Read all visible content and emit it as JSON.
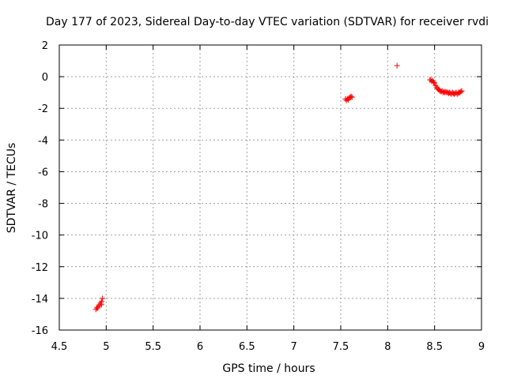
{
  "chart_data": {
    "type": "scatter",
    "title": "Day 177 of 2023, Sidereal Day-to-day VTEC variation (SDTVAR) for receiver rvdi",
    "xlabel": "GPS time / hours",
    "ylabel": "SDTVAR / TECUs",
    "xlim": [
      4.5,
      9
    ],
    "ylim": [
      -16,
      2
    ],
    "xticks": [
      4.5,
      5,
      5.5,
      6,
      6.5,
      7,
      7.5,
      8,
      8.5,
      9
    ],
    "xtick_labels": [
      "4.5",
      "5",
      "5.5",
      "6",
      "6.5",
      "7",
      "7.5",
      "8",
      "8.5",
      "9"
    ],
    "yticks": [
      -16,
      -14,
      -12,
      -10,
      -8,
      -6,
      -4,
      -2,
      0,
      2
    ],
    "ytick_labels": [
      "-16",
      "-14",
      "-12",
      "-10",
      "-8",
      "-6",
      "-4",
      "-2",
      "0",
      "2"
    ],
    "grid": true,
    "marker": "+",
    "color": "#ff0000",
    "series": [
      {
        "name": "SDTVAR",
        "x": [
          4.89,
          4.9,
          4.91,
          4.92,
          4.93,
          4.94,
          4.95,
          4.95,
          4.96,
          7.55,
          7.56,
          7.57,
          7.58,
          7.59,
          7.6,
          7.61,
          7.62,
          8.1,
          8.45,
          8.46,
          8.47,
          8.48,
          8.49,
          8.5,
          8.51,
          8.52,
          8.53,
          8.54,
          8.55,
          8.56,
          8.57,
          8.58,
          8.59,
          8.6,
          8.61,
          8.62,
          8.63,
          8.64,
          8.65,
          8.66,
          8.67,
          8.68,
          8.69,
          8.7,
          8.71,
          8.72,
          8.73,
          8.74,
          8.75,
          8.76,
          8.77,
          8.78,
          8.79
        ],
        "y": [
          -14.7,
          -14.6,
          -14.6,
          -14.5,
          -14.4,
          -14.3,
          -14.2,
          -14.4,
          -14.0,
          -1.4,
          -1.5,
          -1.4,
          -1.45,
          -1.35,
          -1.3,
          -1.25,
          -1.3,
          0.7,
          -0.2,
          -0.2,
          -0.3,
          -0.25,
          -0.35,
          -0.4,
          -0.55,
          -0.65,
          -0.75,
          -0.8,
          -0.85,
          -0.9,
          -0.95,
          -0.9,
          -1.0,
          -0.95,
          -1.0,
          -0.95,
          -1.0,
          -1.0,
          -1.05,
          -1.0,
          -1.05,
          -1.1,
          -1.0,
          -1.05,
          -1.1,
          -1.05,
          -1.0,
          -1.1,
          -1.05,
          -1.0,
          -1.0,
          -0.95,
          -0.9
        ]
      }
    ]
  }
}
